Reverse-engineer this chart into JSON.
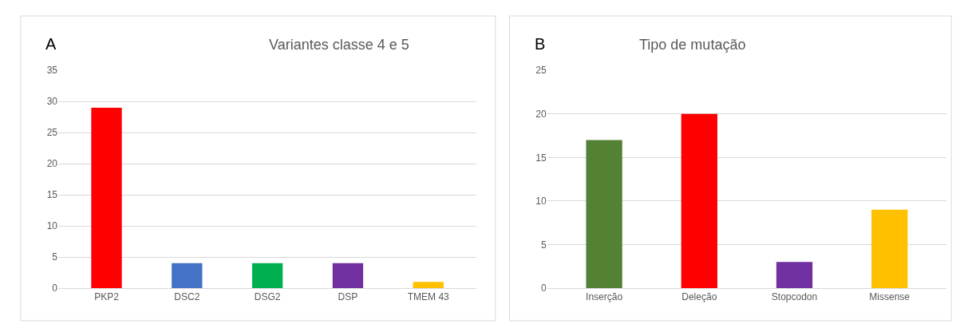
{
  "chart_data": [
    {
      "type": "bar",
      "title": "Variantes classe 4 e 5",
      "annotations": [
        "A"
      ],
      "categories": [
        "PKP2",
        "DSC2",
        "DSG2",
        "DSP",
        "TMEM 43"
      ],
      "values": [
        29,
        4,
        4,
        4,
        1
      ],
      "colors": [
        "#ff0000",
        "#4472c4",
        "#00b050",
        "#7030a0",
        "#ffc000"
      ],
      "ylim": [
        0,
        35
      ],
      "yticks": [
        0,
        5,
        10,
        15,
        20,
        25,
        30,
        35
      ],
      "grid": "y",
      "legend": false
    },
    {
      "type": "bar",
      "title": "Tipo de mutação",
      "annotations": [
        "B"
      ],
      "categories": [
        "Inserção",
        "Deleção",
        "Stopcodon",
        "Missense"
      ],
      "values": [
        17,
        20,
        3,
        9
      ],
      "colors": [
        "#548235",
        "#ff0000",
        "#7030a0",
        "#ffc000"
      ],
      "ylim": [
        0,
        25
      ],
      "yticks": [
        0,
        5,
        10,
        15,
        20,
        25
      ],
      "grid": "y",
      "legend": false
    }
  ]
}
